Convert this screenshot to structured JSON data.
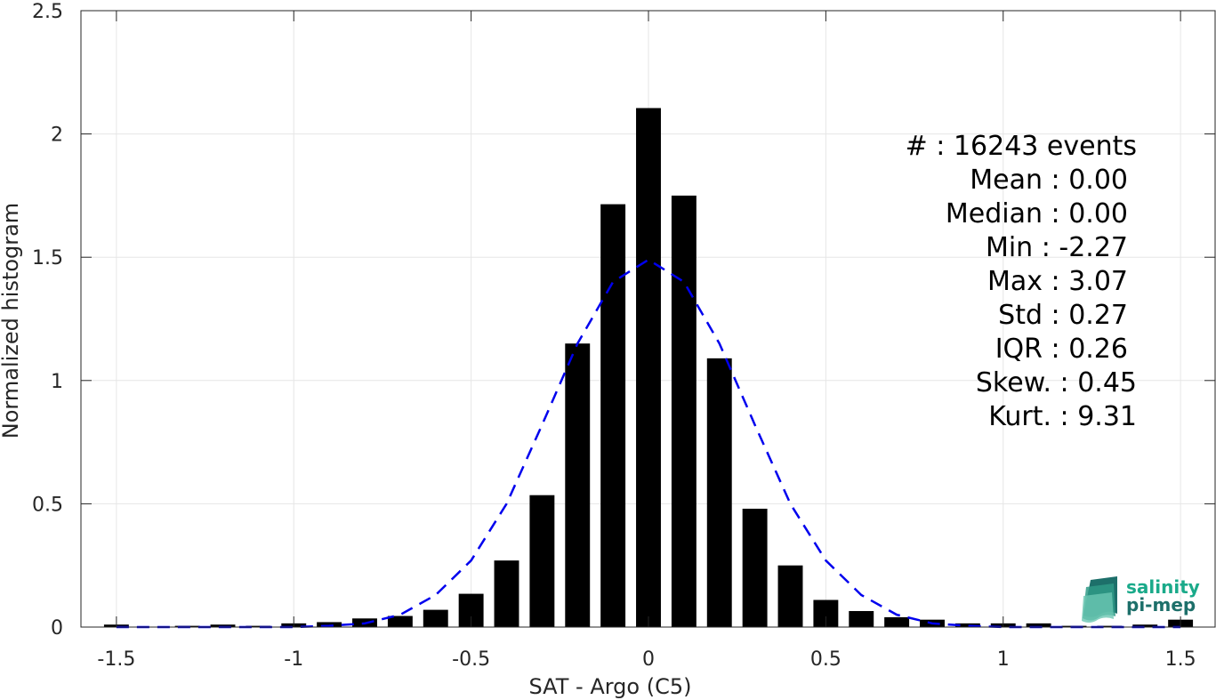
{
  "chart_data": {
    "type": "bar",
    "xlabel": "SAT - Argo (C5)",
    "ylabel": "Normalized histogram",
    "xlim": [
      -1.6,
      1.6
    ],
    "ylim": [
      0,
      2.5
    ],
    "grid": true,
    "x_ticks": [
      -1.5,
      -1,
      -0.5,
      0,
      0.5,
      1,
      1.5
    ],
    "x_tick_labels": [
      "-1.5",
      "-1",
      "-0.5",
      "0",
      "0.5",
      "1",
      "1.5"
    ],
    "y_ticks": [
      0,
      0.5,
      1,
      1.5,
      2,
      2.5
    ],
    "y_tick_labels": [
      "0",
      "0.5",
      "1",
      "1.5",
      "2",
      "2.5"
    ],
    "bar_width": 0.07,
    "bar_color": "#000000",
    "x": [
      -1.5,
      -1.4,
      -1.3,
      -1.2,
      -1.1,
      -1.0,
      -0.9,
      -0.8,
      -0.7,
      -0.6,
      -0.5,
      -0.4,
      -0.3,
      -0.2,
      -0.1,
      0.0,
      0.1,
      0.2,
      0.3,
      0.4,
      0.5,
      0.6,
      0.7,
      0.8,
      0.9,
      1.0,
      1.1,
      1.2,
      1.3,
      1.4,
      1.5
    ],
    "values": [
      0.01,
      0.0,
      0.005,
      0.01,
      0.005,
      0.015,
      0.02,
      0.035,
      0.045,
      0.07,
      0.135,
      0.27,
      0.535,
      1.15,
      1.715,
      2.105,
      1.75,
      1.09,
      0.48,
      0.25,
      0.11,
      0.065,
      0.04,
      0.03,
      0.015,
      0.015,
      0.015,
      0.005,
      0.005,
      0.01,
      0.03
    ],
    "fit_curve": {
      "style": "dashed",
      "color": "#0000ee",
      "x": [
        -1.5,
        -1.4,
        -1.3,
        -1.2,
        -1.1,
        -1.0,
        -0.9,
        -0.8,
        -0.7,
        -0.6,
        -0.5,
        -0.4,
        -0.3,
        -0.2,
        -0.1,
        0.0,
        0.1,
        0.2,
        0.3,
        0.4,
        0.5,
        0.6,
        0.7,
        0.8,
        0.9,
        1.0,
        1.1,
        1.2,
        1.3,
        1.4,
        1.5
      ],
      "y": [
        0.0,
        0.0,
        0.0,
        0.0,
        0.0,
        0.0,
        0.005,
        0.015,
        0.05,
        0.13,
        0.27,
        0.5,
        0.82,
        1.15,
        1.4,
        1.49,
        1.4,
        1.15,
        0.82,
        0.5,
        0.27,
        0.13,
        0.05,
        0.015,
        0.005,
        0.0,
        0.0,
        0.0,
        0.0,
        0.0,
        0.0
      ]
    },
    "annotations": [
      "#  : 16243 events",
      "Mean : 0.00",
      "Median : 0.00",
      "Min : -2.27",
      "Max : 3.07",
      "Std : 0.27",
      "IQR : 0.26",
      "Skew. : 0.45",
      "Kurt. : 9.31"
    ]
  },
  "logo": {
    "line1": "salinity",
    "line2": "pi-mep"
  },
  "colors": {
    "axis": "#262626",
    "grid": "#e6e6e6",
    "logo_green": "#1aaa8a",
    "logo_dark": "#1d6f6a"
  }
}
